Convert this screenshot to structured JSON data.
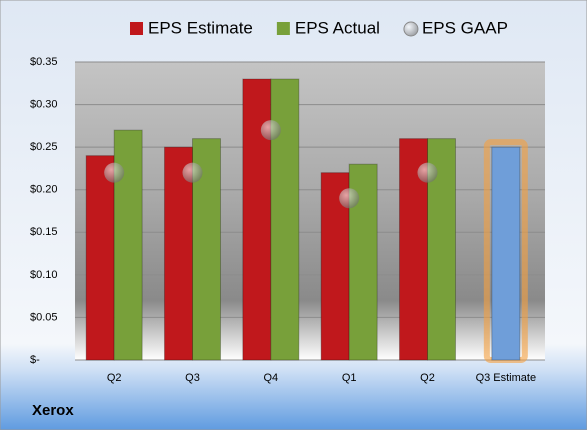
{
  "chart_data": {
    "type": "bar",
    "categories": [
      "Q2",
      "Q3",
      "Q4",
      "Q1",
      "Q2",
      "Q3 Estimate"
    ],
    "series": [
      {
        "name": "EPS Estimate",
        "color": "#c0181c",
        "values": [
          0.24,
          0.25,
          0.33,
          0.22,
          0.26,
          0.25
        ]
      },
      {
        "name": "EPS Actual",
        "color": "#78a03a",
        "values": [
          0.27,
          0.26,
          0.33,
          0.23,
          0.26,
          null
        ]
      },
      {
        "name": "EPS GAAP",
        "color": "#9aa0a8",
        "values": [
          0.22,
          0.22,
          0.27,
          0.19,
          0.22,
          null
        ]
      }
    ],
    "forecast_color": "#6f9ed9",
    "ylim": [
      0,
      0.35
    ],
    "yticks": [
      {
        "value": 0,
        "label": "$-"
      },
      {
        "value": 0.05,
        "label": "$0.05"
      },
      {
        "value": 0.1,
        "label": "$0.10"
      },
      {
        "value": 0.15,
        "label": "$0.15"
      },
      {
        "value": 0.2,
        "label": "$0.20"
      },
      {
        "value": 0.25,
        "label": "$0.25"
      },
      {
        "value": 0.3,
        "label": "$0.30"
      },
      {
        "value": 0.35,
        "label": "$0.35"
      }
    ],
    "grid": true,
    "legend": "top",
    "footer": "Xerox"
  }
}
